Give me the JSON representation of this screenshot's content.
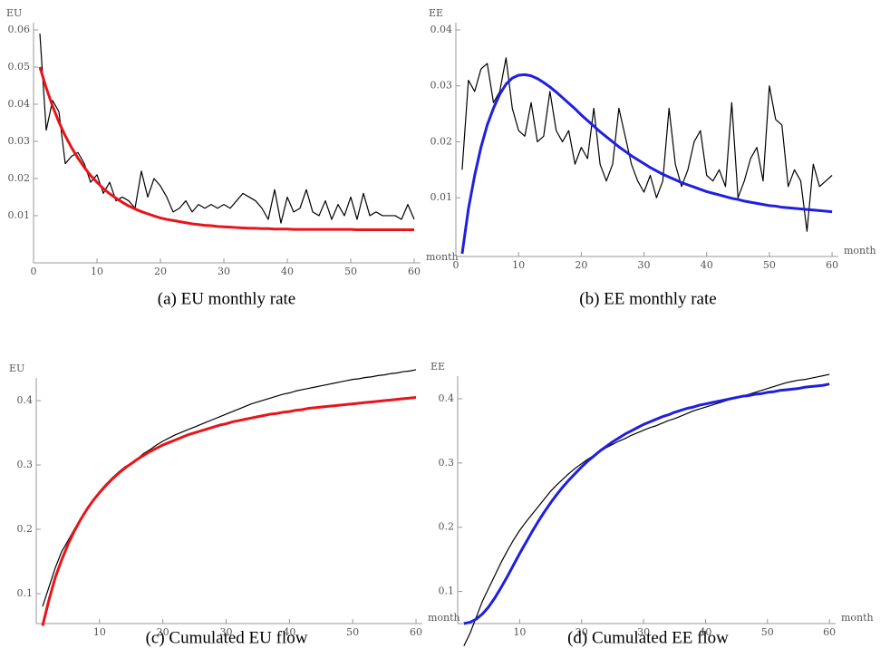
{
  "chart_data": [
    {
      "type": "line",
      "caption": "(a) EU monthly rate",
      "y_label": "EU",
      "x_label": "month",
      "x": [
        1,
        2,
        3,
        4,
        5,
        6,
        7,
        8,
        9,
        10,
        11,
        12,
        13,
        14,
        15,
        16,
        17,
        18,
        19,
        20,
        21,
        22,
        23,
        24,
        25,
        26,
        27,
        28,
        29,
        30,
        31,
        32,
        33,
        34,
        35,
        36,
        37,
        38,
        39,
        40,
        41,
        42,
        43,
        44,
        45,
        46,
        47,
        48,
        49,
        50,
        51,
        52,
        53,
        54,
        55,
        56,
        57,
        58,
        59,
        60
      ],
      "xlim": [
        0,
        61
      ],
      "ylim": [
        -0.0027,
        0.06
      ],
      "xticks": [
        0,
        10,
        20,
        30,
        40,
        50,
        60
      ],
      "yticks": [
        0.01,
        0.02,
        0.03,
        0.04,
        0.05,
        0.06
      ],
      "series": [
        {
          "color": "#000000",
          "values": [
            0.059,
            0.033,
            0.041,
            0.038,
            0.024,
            0.026,
            0.027,
            0.024,
            0.019,
            0.021,
            0.016,
            0.019,
            0.014,
            0.015,
            0.014,
            0.012,
            0.022,
            0.015,
            0.02,
            0.018,
            0.015,
            0.011,
            0.012,
            0.014,
            0.011,
            0.013,
            0.012,
            0.013,
            0.012,
            0.013,
            0.012,
            0.014,
            0.016,
            0.015,
            0.014,
            0.012,
            0.009,
            0.017,
            0.008,
            0.015,
            0.011,
            0.012,
            0.017,
            0.011,
            0.01,
            0.014,
            0.009,
            0.013,
            0.01,
            0.015,
            0.009,
            0.016,
            0.01,
            0.011,
            0.01,
            0.01,
            0.01,
            0.009,
            0.013,
            0.009
          ]
        },
        {
          "color": "#e8141b",
          "values": [
            0.05,
            0.0444,
            0.0395,
            0.0352,
            0.0315,
            0.0283,
            0.0255,
            0.023,
            0.0208,
            0.019,
            0.0173,
            0.0159,
            0.0147,
            0.0136,
            0.0126,
            0.0118,
            0.0111,
            0.0105,
            0.0099,
            0.0094,
            0.009,
            0.0087,
            0.0084,
            0.0081,
            0.0078,
            0.0076,
            0.0074,
            0.0073,
            0.0071,
            0.007,
            0.0069,
            0.0068,
            0.0067,
            0.0066,
            0.0066,
            0.0065,
            0.0065,
            0.0064,
            0.0064,
            0.0064,
            0.0063,
            0.0063,
            0.0063,
            0.0063,
            0.0063,
            0.0063,
            0.0063,
            0.0063,
            0.0063,
            0.0063,
            0.0062,
            0.0062,
            0.0062,
            0.0062,
            0.0062,
            0.0062,
            0.0062,
            0.0062,
            0.0062,
            0.0062
          ]
        }
      ]
    },
    {
      "type": "line",
      "caption": "(b) EE monthly rate",
      "y_label": "EE",
      "x_label": "month",
      "x": [
        1,
        2,
        3,
        4,
        5,
        6,
        7,
        8,
        9,
        10,
        11,
        12,
        13,
        14,
        15,
        16,
        17,
        18,
        19,
        20,
        21,
        22,
        23,
        24,
        25,
        26,
        27,
        28,
        29,
        30,
        31,
        32,
        33,
        34,
        35,
        36,
        37,
        38,
        39,
        40,
        41,
        42,
        43,
        44,
        45,
        46,
        47,
        48,
        49,
        50,
        51,
        52,
        53,
        54,
        55,
        56,
        57,
        58,
        59,
        60
      ],
      "xlim": [
        0,
        61
      ],
      "ylim": [
        -0.0005,
        0.04
      ],
      "xticks": [
        0,
        10,
        20,
        30,
        40,
        50,
        60
      ],
      "yticks": [
        0.01,
        0.02,
        0.03,
        0.04
      ],
      "series": [
        {
          "color": "#000000",
          "values": [
            0.015,
            0.031,
            0.029,
            0.033,
            0.034,
            0.027,
            0.029,
            0.035,
            0.026,
            0.022,
            0.021,
            0.027,
            0.02,
            0.021,
            0.029,
            0.022,
            0.02,
            0.022,
            0.016,
            0.019,
            0.017,
            0.026,
            0.016,
            0.013,
            0.016,
            0.026,
            0.021,
            0.016,
            0.013,
            0.011,
            0.014,
            0.01,
            0.013,
            0.026,
            0.016,
            0.012,
            0.015,
            0.02,
            0.022,
            0.014,
            0.013,
            0.015,
            0.012,
            0.027,
            0.01,
            0.013,
            0.017,
            0.019,
            0.013,
            0.03,
            0.024,
            0.023,
            0.012,
            0.015,
            0.013,
            0.004,
            0.016,
            0.012,
            0.013,
            0.014
          ]
        },
        {
          "color": "#1f1fe0",
          "values": [
            0.0,
            0.008,
            0.014,
            0.019,
            0.023,
            0.026,
            0.0285,
            0.0303,
            0.0314,
            0.0319,
            0.032,
            0.0318,
            0.0313,
            0.0306,
            0.0298,
            0.0289,
            0.0279,
            0.0269,
            0.0259,
            0.0248,
            0.0238,
            0.0228,
            0.0218,
            0.0209,
            0.02,
            0.0191,
            0.0183,
            0.0175,
            0.0168,
            0.0161,
            0.0154,
            0.0148,
            0.0142,
            0.0137,
            0.0132,
            0.0127,
            0.0123,
            0.0119,
            0.0115,
            0.0111,
            0.0108,
            0.0105,
            0.0102,
            0.0099,
            0.0097,
            0.0094,
            0.0092,
            0.009,
            0.0088,
            0.0086,
            0.0085,
            0.0083,
            0.0082,
            0.0081,
            0.008,
            0.0079,
            0.0078,
            0.0077,
            0.0076,
            0.0075
          ]
        }
      ]
    },
    {
      "type": "line",
      "caption": "(c) Cumulated EU flow",
      "y_label": "EU",
      "x_label": "month",
      "x": [
        1,
        2,
        3,
        4,
        5,
        6,
        7,
        8,
        9,
        10,
        11,
        12,
        13,
        14,
        15,
        16,
        17,
        18,
        19,
        20,
        21,
        22,
        23,
        24,
        25,
        26,
        27,
        28,
        29,
        30,
        31,
        32,
        33,
        34,
        35,
        36,
        37,
        38,
        39,
        40,
        41,
        42,
        43,
        44,
        45,
        46,
        47,
        48,
        49,
        50,
        51,
        52,
        53,
        54,
        55,
        56,
        57,
        58,
        59,
        60
      ],
      "xlim": [
        0,
        61
      ],
      "ylim": [
        0.0535,
        0.424
      ],
      "xticks": [
        10,
        20,
        30,
        40,
        50,
        60
      ],
      "yticks": [
        0.1,
        0.2,
        0.3,
        0.4
      ],
      "series": [
        {
          "color": "#000000",
          "values": [
            0.08,
            0.11,
            0.14,
            0.165,
            0.182,
            0.2,
            0.216,
            0.232,
            0.246,
            0.259,
            0.27,
            0.28,
            0.289,
            0.297,
            0.303,
            0.31,
            0.318,
            0.324,
            0.331,
            0.337,
            0.342,
            0.347,
            0.351,
            0.355,
            0.359,
            0.363,
            0.367,
            0.371,
            0.375,
            0.379,
            0.383,
            0.387,
            0.391,
            0.395,
            0.398,
            0.401,
            0.404,
            0.407,
            0.41,
            0.412,
            0.415,
            0.417,
            0.419,
            0.421,
            0.423,
            0.425,
            0.427,
            0.429,
            0.431,
            0.433,
            0.434,
            0.436,
            0.437,
            0.439,
            0.44,
            0.442,
            0.443,
            0.445,
            0.446,
            0.448
          ]
        },
        {
          "color": "#e8141b",
          "values": [
            0.05,
            0.09,
            0.125,
            0.152,
            0.176,
            0.197,
            0.215,
            0.231,
            0.245,
            0.257,
            0.268,
            0.278,
            0.287,
            0.295,
            0.302,
            0.309,
            0.315,
            0.321,
            0.326,
            0.331,
            0.335,
            0.339,
            0.343,
            0.347,
            0.35,
            0.353,
            0.356,
            0.359,
            0.362,
            0.364,
            0.367,
            0.369,
            0.371,
            0.373,
            0.375,
            0.377,
            0.379,
            0.38,
            0.382,
            0.383,
            0.385,
            0.386,
            0.388,
            0.389,
            0.39,
            0.391,
            0.392,
            0.393,
            0.394,
            0.395,
            0.396,
            0.397,
            0.398,
            0.399,
            0.4,
            0.401,
            0.402,
            0.403,
            0.404,
            0.405
          ]
        }
      ]
    },
    {
      "type": "line",
      "caption": "(d) Cumulated EE flow",
      "y_label": "EE",
      "x_label": "month",
      "x": [
        1,
        2,
        3,
        4,
        5,
        6,
        7,
        8,
        9,
        10,
        11,
        12,
        13,
        14,
        15,
        16,
        17,
        18,
        19,
        20,
        21,
        22,
        23,
        24,
        25,
        26,
        27,
        28,
        29,
        30,
        31,
        32,
        33,
        34,
        35,
        36,
        37,
        38,
        39,
        40,
        41,
        42,
        43,
        44,
        45,
        46,
        47,
        48,
        49,
        50,
        51,
        52,
        53,
        54,
        55,
        56,
        57,
        58,
        59,
        60
      ],
      "xlim": [
        0,
        61
      ],
      "ylim": [
        0.05,
        0.424
      ],
      "xticks": [
        10,
        20,
        30,
        40,
        50,
        60
      ],
      "yticks": [
        0.1,
        0.2,
        0.3,
        0.4
      ],
      "series": [
        {
          "color": "#000000",
          "values": [
            0.015,
            0.035,
            0.06,
            0.085,
            0.105,
            0.125,
            0.145,
            0.163,
            0.18,
            0.195,
            0.208,
            0.22,
            0.232,
            0.244,
            0.256,
            0.266,
            0.275,
            0.284,
            0.292,
            0.299,
            0.306,
            0.312,
            0.318,
            0.324,
            0.329,
            0.334,
            0.338,
            0.343,
            0.347,
            0.351,
            0.355,
            0.358,
            0.362,
            0.366,
            0.369,
            0.373,
            0.377,
            0.381,
            0.384,
            0.387,
            0.39,
            0.393,
            0.396,
            0.399,
            0.401,
            0.404,
            0.407,
            0.41,
            0.413,
            0.416,
            0.419,
            0.422,
            0.425,
            0.427,
            0.429,
            0.43,
            0.432,
            0.434,
            0.436,
            0.438
          ]
        },
        {
          "color": "#1f1fe0",
          "values": [
            0.05,
            0.052,
            0.057,
            0.065,
            0.076,
            0.09,
            0.106,
            0.123,
            0.141,
            0.159,
            0.176,
            0.193,
            0.209,
            0.224,
            0.238,
            0.251,
            0.263,
            0.274,
            0.284,
            0.294,
            0.303,
            0.311,
            0.319,
            0.326,
            0.333,
            0.339,
            0.345,
            0.35,
            0.355,
            0.36,
            0.364,
            0.368,
            0.372,
            0.375,
            0.379,
            0.382,
            0.385,
            0.387,
            0.39,
            0.392,
            0.394,
            0.396,
            0.398,
            0.4,
            0.402,
            0.404,
            0.405,
            0.407,
            0.408,
            0.41,
            0.411,
            0.413,
            0.414,
            0.415,
            0.416,
            0.418,
            0.419,
            0.42,
            0.421,
            0.423
          ]
        }
      ]
    }
  ]
}
